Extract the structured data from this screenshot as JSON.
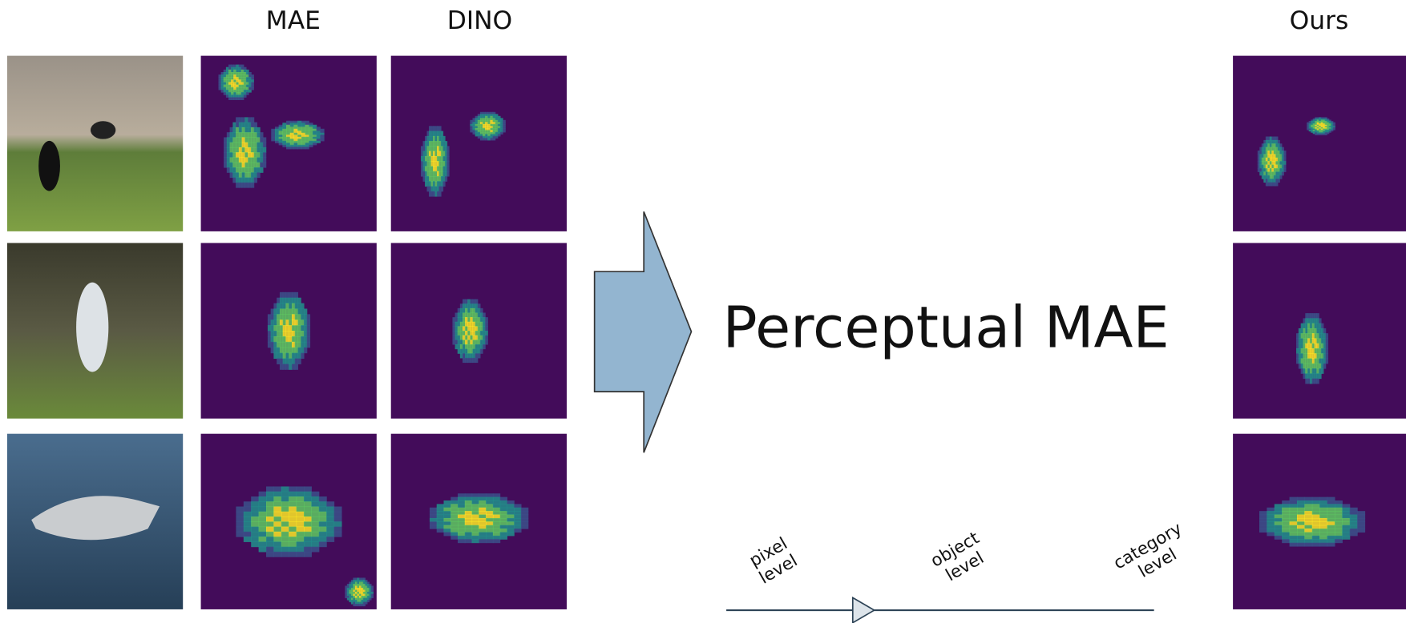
{
  "columns": {
    "mae": "MAE",
    "dino": "DINO",
    "ours": "Ours"
  },
  "title": "Perceptual MAE",
  "scale": {
    "labels": [
      [
        "pixel",
        "level"
      ],
      [
        "object",
        "level"
      ],
      [
        "category",
        "level"
      ]
    ]
  }
}
